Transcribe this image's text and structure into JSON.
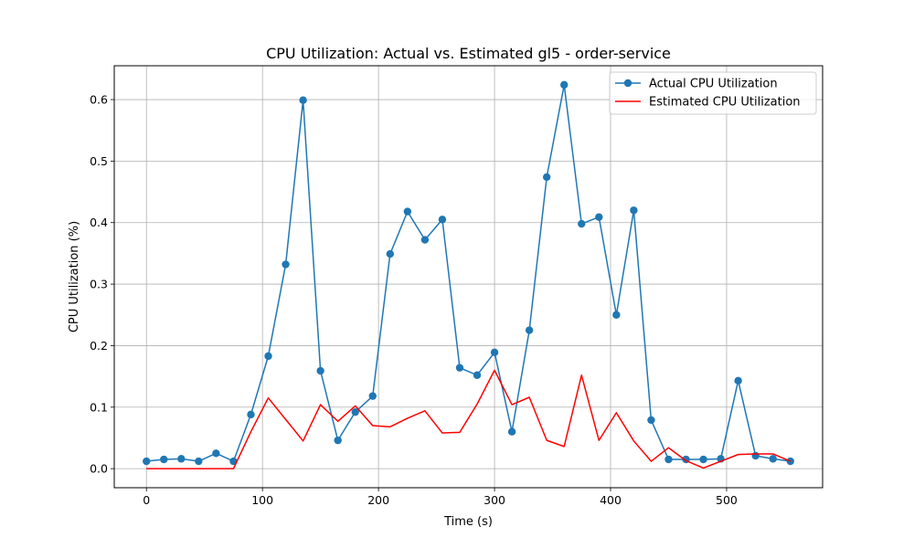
{
  "chart_data": {
    "type": "line",
    "title": "CPU Utilization: Actual vs. Estimated gl5 - order-service",
    "xlabel": "Time (s)",
    "ylabel": "CPU Utilization (%)",
    "xlim": [
      -27.75,
      582.75
    ],
    "ylim": [
      -0.031,
      0.655
    ],
    "xticks": [
      0,
      100,
      200,
      300,
      400,
      500
    ],
    "yticks": [
      0.0,
      0.1,
      0.2,
      0.3,
      0.4,
      0.5,
      0.6
    ],
    "ytick_labels": [
      "0.0",
      "0.1",
      "0.2",
      "0.3",
      "0.4",
      "0.5",
      "0.6"
    ],
    "grid": true,
    "legend_position": "top-right",
    "x": [
      0,
      15,
      30,
      45,
      60,
      75,
      90,
      105,
      120,
      135,
      150,
      165,
      180,
      195,
      210,
      225,
      240,
      255,
      270,
      285,
      300,
      315,
      330,
      345,
      360,
      375,
      390,
      405,
      420,
      435,
      450,
      465,
      480,
      495,
      510,
      525,
      540,
      555
    ],
    "series": [
      {
        "name": "Actual CPU Utilization",
        "color": "#1f77b4",
        "marker": "circle",
        "values": [
          0.012,
          0.015,
          0.016,
          0.012,
          0.025,
          0.012,
          0.088,
          0.183,
          0.332,
          0.599,
          0.159,
          0.046,
          0.092,
          0.118,
          0.349,
          0.418,
          0.372,
          0.405,
          0.164,
          0.152,
          0.189,
          0.06,
          0.225,
          0.474,
          0.624,
          0.398,
          0.409,
          0.25,
          0.42,
          0.079,
          0.015,
          0.015,
          0.015,
          0.016,
          0.143,
          0.021,
          0.016,
          0.012
        ]
      },
      {
        "name": "Estimated CPU Utilization",
        "color": "#ff0000",
        "marker": "none",
        "values": [
          0.0,
          0.0,
          0.0,
          0.0,
          0.0,
          0.0,
          0.06,
          0.115,
          0.08,
          0.045,
          0.104,
          0.077,
          0.102,
          0.07,
          0.068,
          0.082,
          0.094,
          0.058,
          0.059,
          0.105,
          0.16,
          0.104,
          0.116,
          0.046,
          0.036,
          0.152,
          0.046,
          0.091,
          0.045,
          0.012,
          0.034,
          0.013,
          0.001,
          0.012,
          0.023,
          0.024,
          0.024,
          0.012
        ]
      }
    ]
  }
}
